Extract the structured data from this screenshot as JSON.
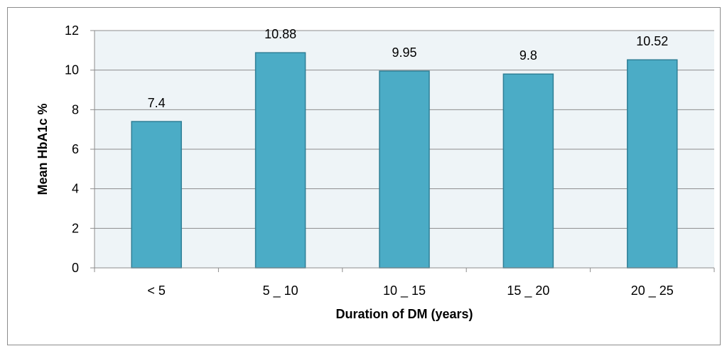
{
  "chart_data": {
    "type": "bar",
    "categories": [
      "< 5",
      "5 _ 10",
      "10 _ 15",
      "15 _ 20",
      "20 _ 25"
    ],
    "values": [
      7.4,
      10.88,
      9.95,
      9.8,
      10.52
    ],
    "data_labels": [
      "7.4",
      "10.88",
      "9.95",
      "9.8",
      "10.52"
    ],
    "title": "",
    "xlabel": "Duration of DM (years)",
    "ylabel": "Mean HbA1c %",
    "ylim": [
      0,
      12
    ],
    "yticks": [
      0,
      2,
      4,
      6,
      8,
      10,
      12
    ],
    "ytick_labels": [
      "0",
      "2",
      "4",
      "6",
      "8",
      "10",
      "12"
    ],
    "grid": true,
    "legend": "none",
    "colors": {
      "bar_fill": "#4bacc6",
      "bar_stroke": "#2f7f96",
      "plot_background": "#eef4f7",
      "gridline": "#8c8c8c",
      "axis": "#8c8c8c"
    }
  }
}
